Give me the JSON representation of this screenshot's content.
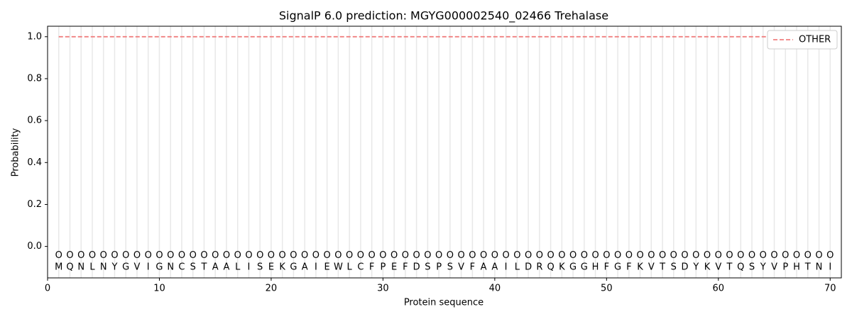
{
  "chart_data": {
    "type": "line",
    "title": "SignalP 6.0 prediction: MGYG000002540_02466 Trehalase",
    "x_label": "Protein sequence",
    "y_label": "Probability",
    "x": [
      1,
      2,
      3,
      4,
      5,
      6,
      7,
      8,
      9,
      10,
      11,
      12,
      13,
      14,
      15,
      16,
      17,
      18,
      19,
      20,
      21,
      22,
      23,
      24,
      25,
      26,
      27,
      28,
      29,
      30,
      31,
      32,
      33,
      34,
      35,
      36,
      37,
      38,
      39,
      40,
      41,
      42,
      43,
      44,
      45,
      46,
      47,
      48,
      49,
      50,
      51,
      52,
      53,
      54,
      55,
      56,
      57,
      58,
      59,
      60,
      61,
      62,
      63,
      64,
      65,
      66,
      67,
      68,
      69,
      70
    ],
    "series": [
      {
        "name": "OTHER",
        "color": "#f08080",
        "dashed": true,
        "values": [
          1,
          1,
          1,
          1,
          1,
          1,
          1,
          1,
          1,
          1,
          1,
          1,
          1,
          1,
          1,
          1,
          1,
          1,
          1,
          1,
          1,
          1,
          1,
          1,
          1,
          1,
          1,
          1,
          1,
          1,
          1,
          1,
          1,
          1,
          1,
          1,
          1,
          1,
          1,
          1,
          1,
          1,
          1,
          1,
          1,
          1,
          1,
          1,
          1,
          1,
          1,
          1,
          1,
          1,
          1,
          1,
          1,
          1,
          1,
          1,
          1,
          1,
          1,
          1,
          1,
          1,
          1,
          1,
          1,
          1
        ]
      }
    ],
    "sequence": [
      "M",
      "Q",
      "N",
      "L",
      "N",
      "Y",
      "G",
      "V",
      "I",
      "G",
      "N",
      "C",
      "S",
      "T",
      "A",
      "A",
      "L",
      "I",
      "S",
      "E",
      "K",
      "G",
      "A",
      "I",
      "E",
      "W",
      "L",
      "C",
      "F",
      "P",
      "E",
      "F",
      "D",
      "S",
      "P",
      "S",
      "V",
      "F",
      "A",
      "A",
      "I",
      "L",
      "D",
      "R",
      "Q",
      "K",
      "G",
      "G",
      "H",
      "F",
      "G",
      "F",
      "K",
      "V",
      "T",
      "S",
      "D",
      "Y",
      "K",
      "V",
      "T",
      "Q",
      "S",
      "Y",
      "V",
      "P",
      "H",
      "T",
      "N",
      "I"
    ],
    "region_labels": [
      "O",
      "O",
      "O",
      "O",
      "O",
      "O",
      "O",
      "O",
      "O",
      "O",
      "O",
      "O",
      "O",
      "O",
      "O",
      "O",
      "O",
      "O",
      "O",
      "O",
      "O",
      "O",
      "O",
      "O",
      "O",
      "O",
      "O",
      "O",
      "O",
      "O",
      "O",
      "O",
      "O",
      "O",
      "O",
      "O",
      "O",
      "O",
      "O",
      "O",
      "O",
      "O",
      "O",
      "O",
      "O",
      "O",
      "O",
      "O",
      "O",
      "O",
      "O",
      "O",
      "O",
      "O",
      "O",
      "O",
      "O",
      "O",
      "O",
      "O",
      "O",
      "O",
      "O",
      "O",
      "O",
      "O",
      "O",
      "O",
      "O",
      "O"
    ],
    "xlim": [
      0,
      71
    ],
    "ylim": [
      -0.15,
      1.05
    ],
    "xticks": [
      0,
      10,
      20,
      30,
      40,
      50,
      60,
      70
    ],
    "yticks": [
      {
        "value": 0,
        "label": "0.0"
      },
      {
        "value": 0.2,
        "label": "0.2"
      },
      {
        "value": 0.4,
        "label": "0.4"
      },
      {
        "value": 0.6,
        "label": "0.6"
      },
      {
        "value": 0.8,
        "label": "0.8"
      },
      {
        "value": 1,
        "label": "1.0"
      }
    ],
    "legend": "upper right"
  }
}
